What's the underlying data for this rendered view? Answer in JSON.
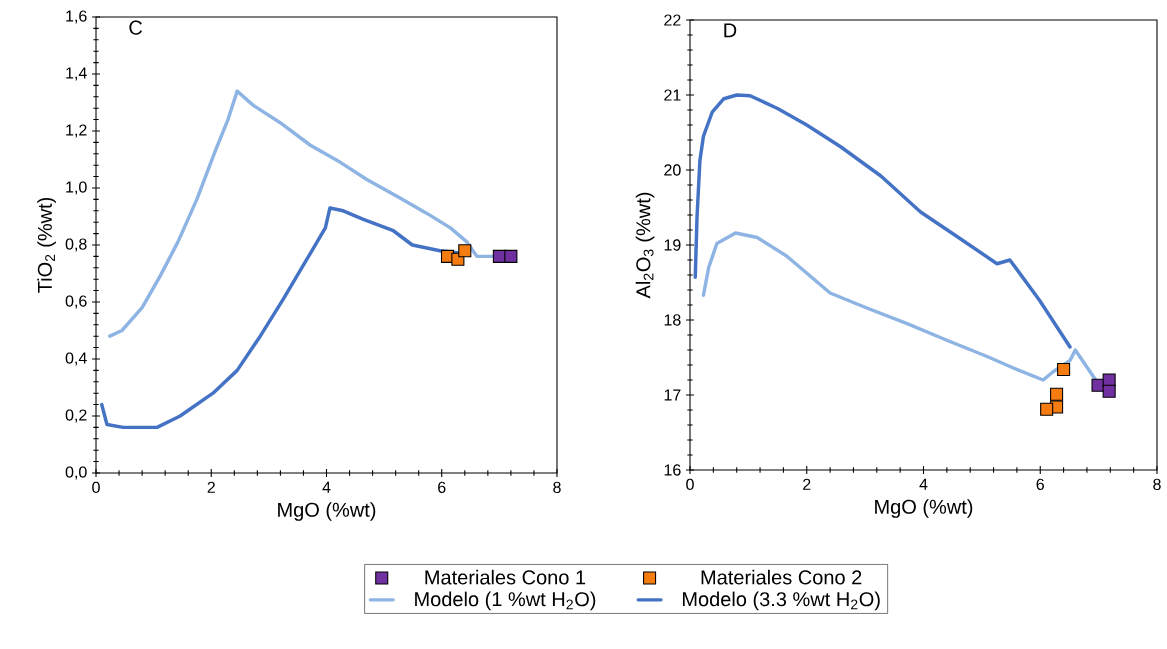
{
  "chart_data": [
    {
      "type": "scatter",
      "title": "C",
      "xlabel": "MgO (%wt)",
      "ylabel": "TiO$_{2}$ (%wt)",
      "xlim": [
        0,
        8
      ],
      "ylim": [
        0,
        1.6
      ],
      "xticks": [
        0,
        2,
        4,
        6,
        8
      ],
      "yticks": [
        {
          "value": 0,
          "label": "0,0"
        },
        {
          "value": 0.2,
          "label": "0,2"
        },
        {
          "value": 0.4,
          "label": "0,4"
        },
        {
          "value": 0.6,
          "label": "0,6"
        },
        {
          "value": 0.8,
          "label": "0,8"
        },
        {
          "value": 1.0,
          "label": "1,0"
        },
        {
          "value": 1.2,
          "label": "1,2"
        },
        {
          "value": 1.4,
          "label": "1,4"
        },
        {
          "value": 1.6,
          "label": "1,6"
        }
      ],
      "grid": false,
      "legend": "bottom",
      "series": [
        {
          "name": "Materiales Cono 1",
          "type": "scatter",
          "marker": "square",
          "color": "#7030a0",
          "x": [
            7.0,
            7.2
          ],
          "values": [
            0.76,
            0.76
          ]
        },
        {
          "name": "Materiales Cono 2",
          "type": "scatter",
          "marker": "square",
          "color": "#f57c10",
          "x": [
            6.1,
            6.28,
            6.4
          ],
          "values": [
            0.76,
            0.75,
            0.78
          ]
        },
        {
          "name": "Modelo (1 %wt H$_{2}$O)",
          "type": "line",
          "color": "#8eb4e3",
          "x": [
            0.24,
            0.45,
            0.8,
            1.11,
            1.42,
            1.75,
            2.07,
            2.29,
            2.45,
            2.73,
            3.19,
            3.72,
            4.24,
            4.7,
            5.23,
            5.75,
            6.15,
            6.44,
            6.61,
            6.9
          ],
          "values": [
            0.48,
            0.5,
            0.58,
            0.69,
            0.81,
            0.96,
            1.13,
            1.24,
            1.34,
            1.29,
            1.23,
            1.15,
            1.09,
            1.03,
            0.97,
            0.91,
            0.86,
            0.81,
            0.76,
            0.76
          ]
        },
        {
          "name": "Modelo (3.3 %wt H$_{2}$O)",
          "type": "line",
          "color": "#4472c4",
          "x": [
            0.1,
            0.19,
            0.47,
            1.06,
            1.46,
            2.03,
            2.45,
            2.85,
            3.25,
            3.66,
            3.98,
            4.06,
            4.29,
            4.64,
            5.16,
            5.49,
            5.97,
            6.37
          ],
          "values": [
            0.24,
            0.17,
            0.16,
            0.16,
            0.2,
            0.28,
            0.36,
            0.48,
            0.61,
            0.75,
            0.86,
            0.93,
            0.92,
            0.89,
            0.85,
            0.8,
            0.78,
            0.77
          ]
        }
      ]
    },
    {
      "type": "scatter",
      "title": "D",
      "xlabel": "MgO (%wt)",
      "ylabel": "Al$_{2}$O$_{3}$ (%wt)",
      "xlim": [
        0,
        8
      ],
      "ylim": [
        16,
        22
      ],
      "xticks": [
        0,
        2,
        4,
        6,
        8
      ],
      "yticks": [
        16,
        17,
        18,
        19,
        20,
        21,
        22
      ],
      "grid": false,
      "series": [
        {
          "type": "scatter",
          "marker": "square",
          "color": "#7030a0",
          "x": [
            6.99,
            7.18,
            7.18
          ],
          "values": [
            17.13,
            17.2,
            17.05
          ]
        },
        {
          "type": "scatter",
          "marker": "square",
          "color": "#f57c10",
          "x": [
            6.4,
            6.28,
            6.28,
            6.11
          ],
          "values": [
            17.34,
            17.01,
            16.84,
            16.81
          ]
        },
        {
          "type": "line",
          "color": "#8eb4e3",
          "x": [
            0.23,
            0.32,
            0.46,
            0.78,
            1.15,
            1.66,
            2.4,
            3.03,
            3.72,
            4.4,
            5.1,
            5.54,
            6.05,
            6.22,
            6.51,
            6.6,
            6.95
          ],
          "values": [
            18.33,
            18.7,
            19.02,
            19.16,
            19.1,
            18.85,
            18.36,
            18.16,
            17.95,
            17.73,
            17.51,
            17.36,
            17.2,
            17.31,
            17.46,
            17.6,
            17.2
          ]
        },
        {
          "type": "line",
          "color": "#4472c4",
          "x": [
            0.09,
            0.12,
            0.17,
            0.23,
            0.38,
            0.58,
            0.8,
            1.03,
            1.5,
            2.0,
            2.58,
            3.27,
            3.95,
            4.58,
            5.26,
            5.48,
            5.99,
            6.51
          ],
          "values": [
            18.57,
            19.37,
            20.13,
            20.45,
            20.77,
            20.95,
            21.0,
            20.99,
            20.82,
            20.6,
            20.31,
            19.92,
            19.44,
            19.11,
            18.75,
            18.8,
            18.26,
            17.64
          ]
        }
      ]
    }
  ]
}
